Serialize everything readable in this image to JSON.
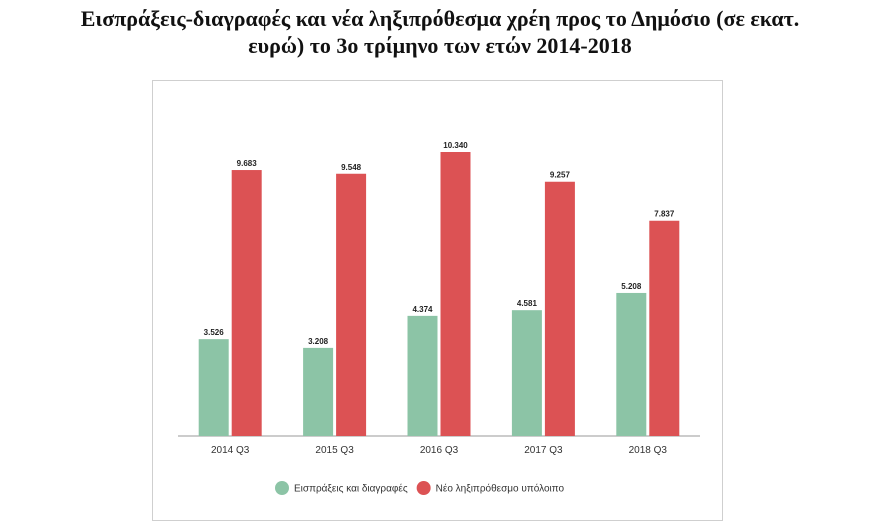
{
  "title_lines": [
    "Εισπράξεις-διαγραφές και νέα ληξιπρόθεσμα χρέη προς το Δημόσιο (σε εκατ.",
    "ευρώ) το 3ο τρίμηνο των ετών 2014-2018"
  ],
  "chart_data": {
    "type": "bar",
    "title": "Εισπράξεις-διαγραφές και νέα ληξιπρόθεσμα χρέη προς το Δημόσιο (σε εκατ. ευρώ) το 3ο τρίμηνο των ετών 2014-2018",
    "categories": [
      "2014 Q3",
      "2015 Q3",
      "2016 Q3",
      "2017 Q3",
      "2018 Q3"
    ],
    "series": [
      {
        "name": "Εισπράξεις και διαγραφές",
        "color": "#8cc4a6",
        "values": [
          3526,
          3208,
          4374,
          4581,
          5208
        ],
        "labels": [
          "3.526",
          "3.208",
          "4.374",
          "4.581",
          "5.208"
        ]
      },
      {
        "name": "Νέο ληξιπρόθεσμο υπόλοιπο",
        "color": "#dc5254",
        "values": [
          9683,
          9548,
          10340,
          9257,
          7837
        ],
        "labels": [
          "9.683",
          "9.548",
          "10.340",
          "9.257",
          "7.837"
        ]
      }
    ],
    "legend_position": "bottom",
    "grid": false
  }
}
